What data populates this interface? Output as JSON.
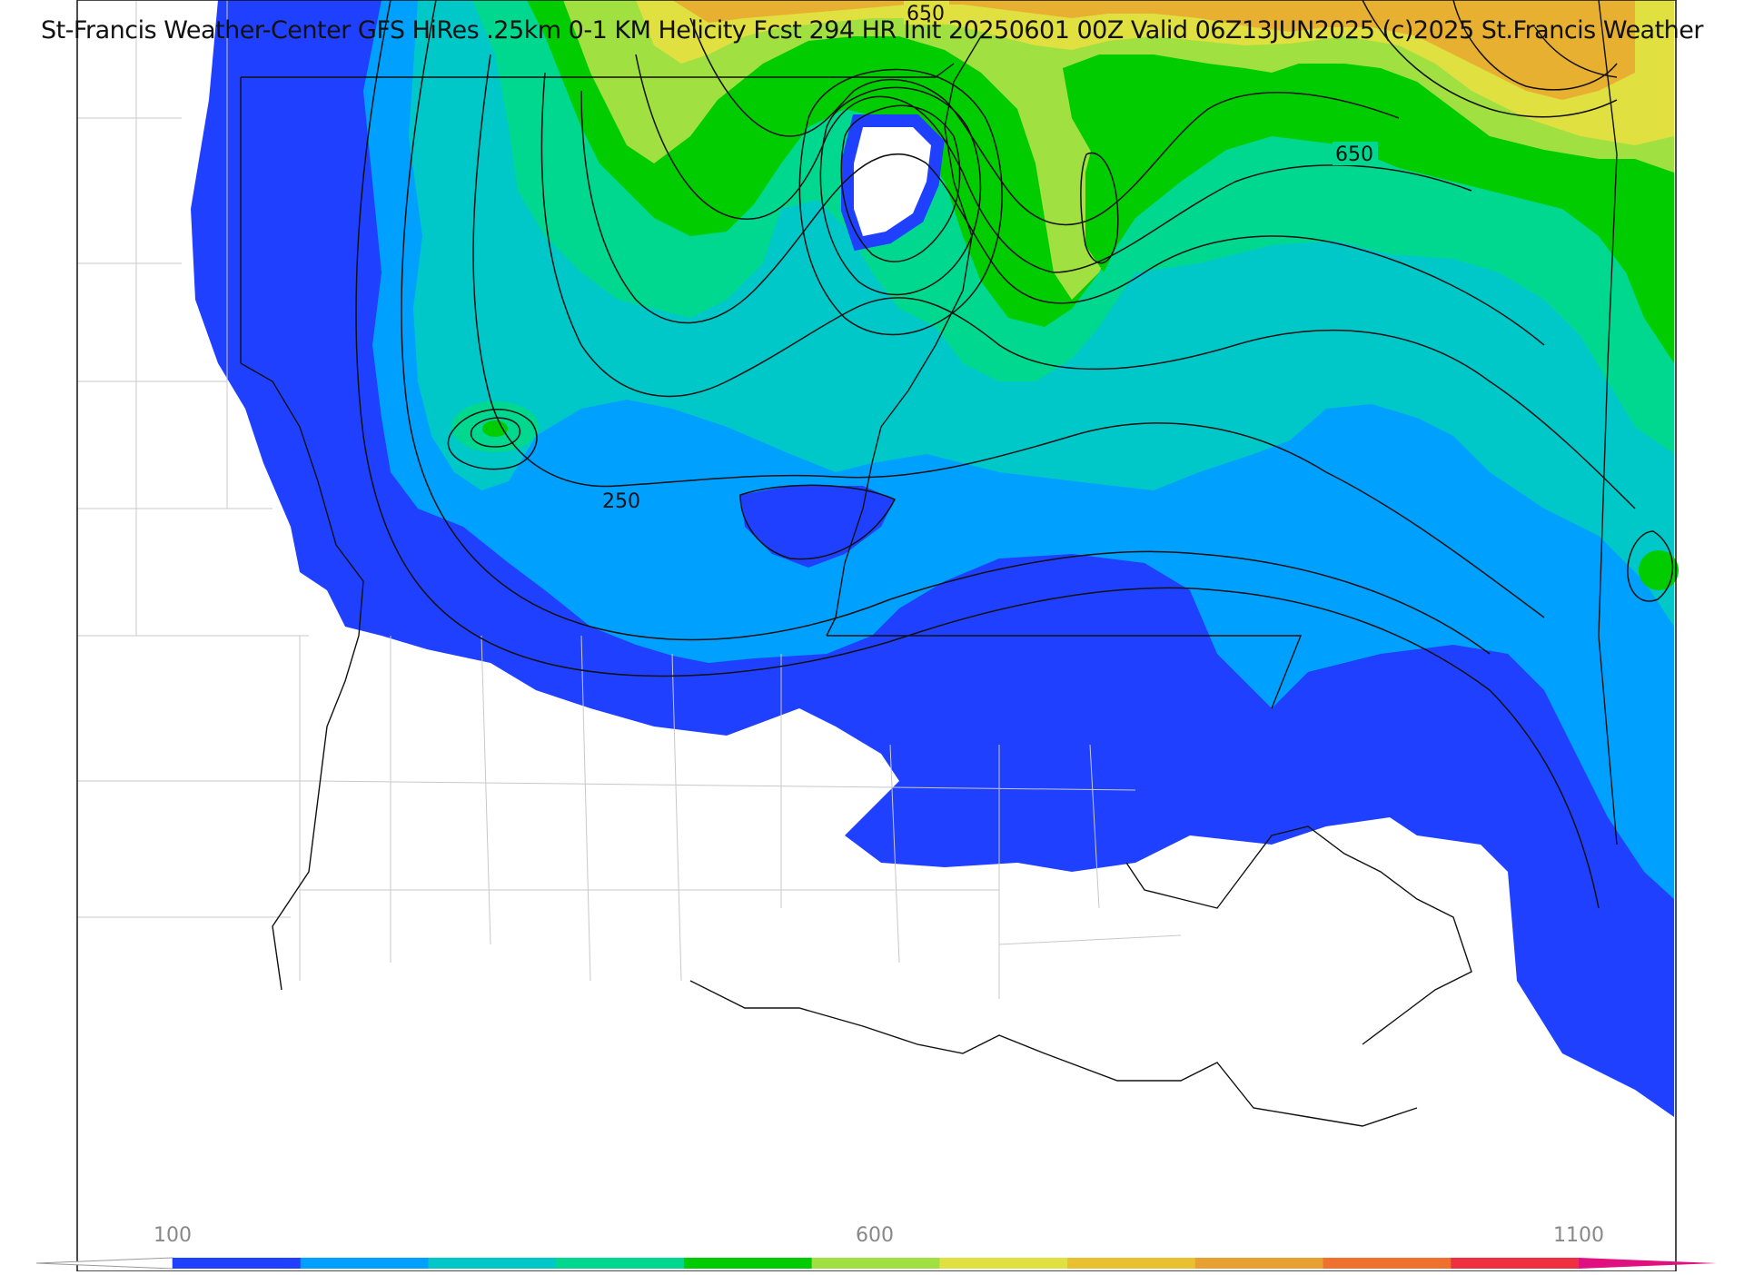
{
  "title": "St-Francis Weather-Center GFS HiRes .25km 0-1 KM Helicity Fcst 294 HR Init 20250601 00Z  Valid 06Z13JUN2025    (c)2025 St.Francis Weather",
  "contour_labels": [
    "650",
    "650",
    "250"
  ],
  "colorbar": {
    "tick_labels": [
      "100",
      "600",
      "1100"
    ],
    "colors": [
      "#2040ff",
      "#00a0ff",
      "#00c8c8",
      "#00d890",
      "#00cc00",
      "#a0e040",
      "#e0e040",
      "#e8c030",
      "#e8a030",
      "#f07030",
      "#f03040",
      "#e01080"
    ]
  }
}
